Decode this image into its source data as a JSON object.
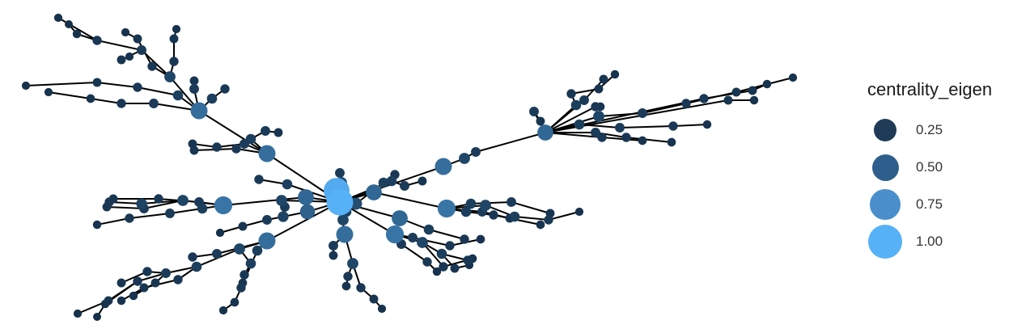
{
  "legend": {
    "title": "centrality_eigen",
    "items": [
      {
        "label": "0.25",
        "value": 0.25,
        "color": "#1f3b57"
      },
      {
        "label": "0.50",
        "value": 0.5,
        "color": "#2e5f8c"
      },
      {
        "label": "0.75",
        "value": 0.75,
        "color": "#4a8fcc"
      },
      {
        "label": "1.00",
        "value": 1.0,
        "color": "#56b1f7"
      }
    ]
  },
  "colors": {
    "edge": "#000000",
    "low": "#132B43",
    "high": "#56B1F7"
  }
}
